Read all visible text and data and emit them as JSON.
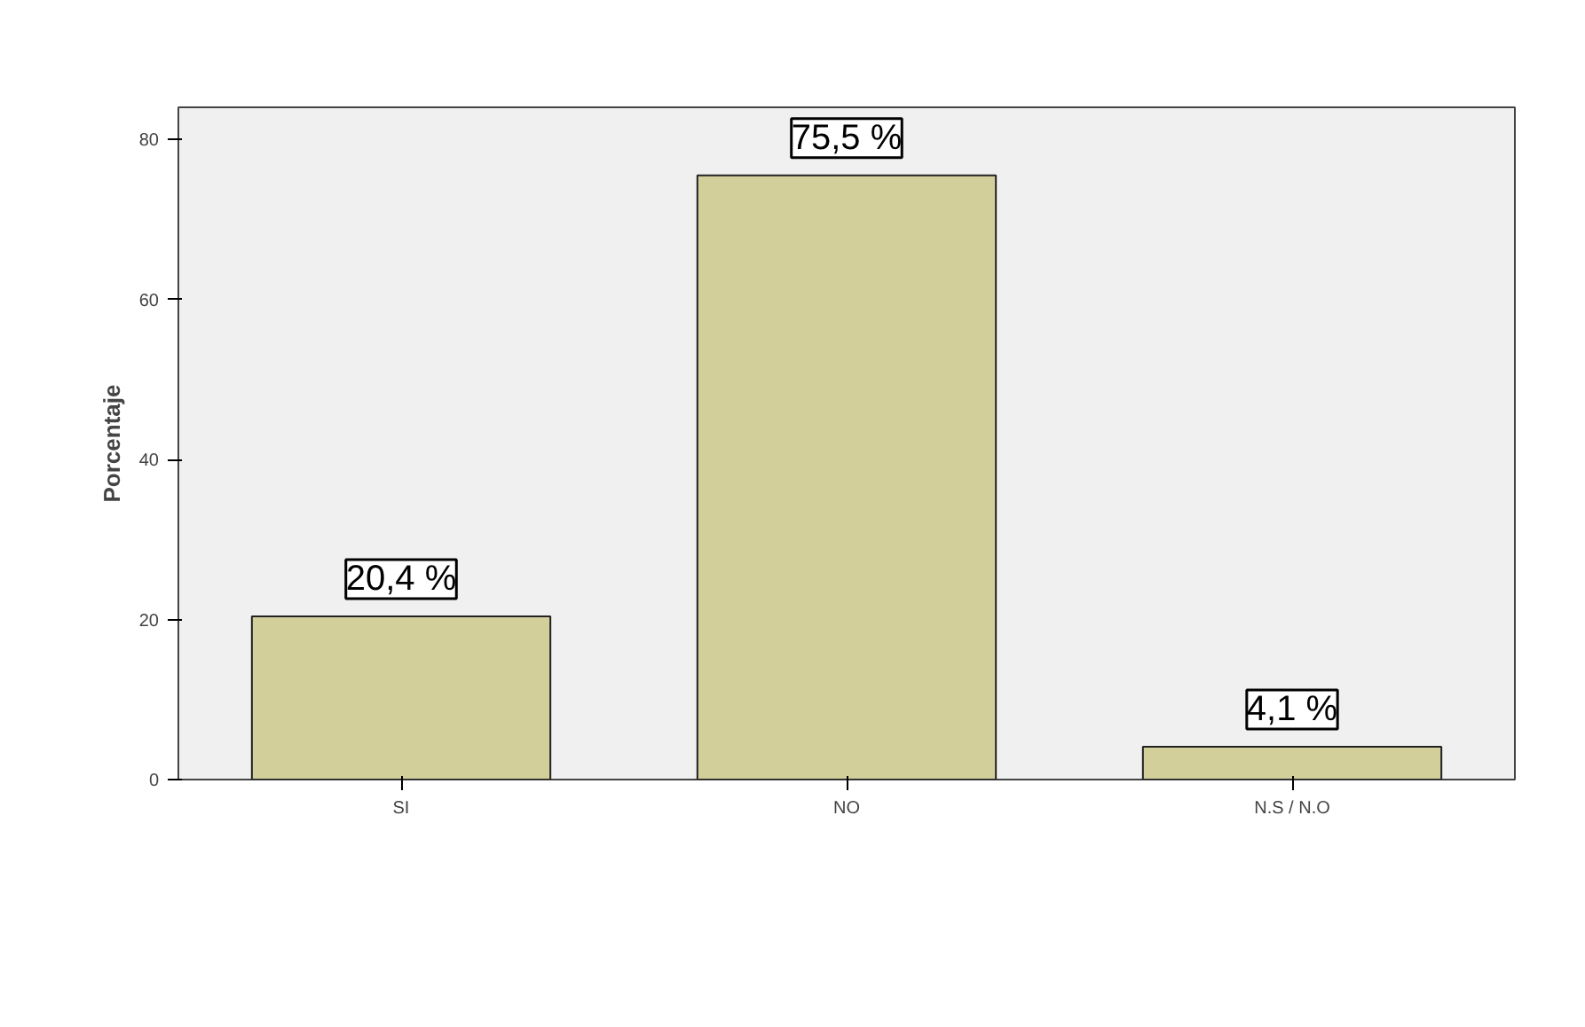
{
  "chart_data": {
    "type": "bar",
    "ylabel": "Porcentaje",
    "categories": [
      "SI",
      "NO",
      "N.S / N.O"
    ],
    "values": [
      20.4,
      75.5,
      4.1
    ],
    "value_labels": [
      "20,4 %",
      "75,5 %",
      "4,1 %"
    ],
    "color": "#d3cf9b",
    "ylim": [
      0,
      84
    ],
    "yticks": [
      0,
      20,
      40,
      60,
      80
    ],
    "grid": false
  }
}
